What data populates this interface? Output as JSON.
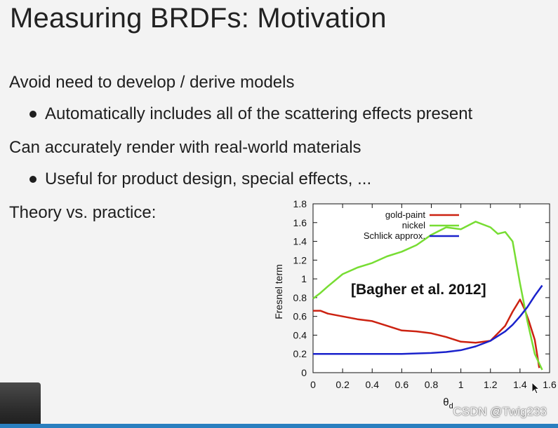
{
  "slide": {
    "title": "Measuring BRDFs: Motivation",
    "lines": [
      "Avoid need to develop / derive models",
      "Automatically includes all of the scattering effects present",
      "Can accurately render with real-world materials",
      "Useful for product design, special effects, ...",
      "Theory vs. practice:"
    ]
  },
  "watermark": "CSDN @Twig233",
  "colors": {
    "gold_paint": "#cc2211",
    "nickel": "#77dd33",
    "schlick": "#1a22cc"
  },
  "chart_data": {
    "type": "line",
    "xlabel": "θd",
    "ylabel": "Fresnel term",
    "xlim": [
      0,
      1.6
    ],
    "ylim": [
      0,
      1.8
    ],
    "xticks": [
      "0",
      "0.2",
      "0.4",
      "0.6",
      "0.8",
      "1",
      "1.2",
      "1.4",
      "1.6"
    ],
    "yticks": [
      "0",
      "0.2",
      "0.4",
      "0.6",
      "0.8",
      "1",
      "1.2",
      "1.4",
      "1.6",
      "1.8"
    ],
    "legend_position": "top-right",
    "annotation": "[Bagher et al. 2012]",
    "series": [
      {
        "name": "gold-paint",
        "color": "#cc2211",
        "x": [
          0,
          0.05,
          0.1,
          0.2,
          0.3,
          0.4,
          0.5,
          0.6,
          0.7,
          0.8,
          0.9,
          1.0,
          1.1,
          1.2,
          1.3,
          1.35,
          1.4,
          1.43,
          1.46,
          1.5,
          1.53
        ],
        "y": [
          0.66,
          0.66,
          0.63,
          0.6,
          0.57,
          0.55,
          0.5,
          0.45,
          0.44,
          0.42,
          0.38,
          0.33,
          0.32,
          0.34,
          0.5,
          0.65,
          0.78,
          0.68,
          0.55,
          0.35,
          0.05
        ]
      },
      {
        "name": "nickel",
        "color": "#77dd33",
        "x": [
          0,
          0.05,
          0.1,
          0.2,
          0.3,
          0.4,
          0.5,
          0.6,
          0.7,
          0.8,
          0.9,
          1.0,
          1.1,
          1.2,
          1.25,
          1.3,
          1.35,
          1.4,
          1.45,
          1.5,
          1.55
        ],
        "y": [
          0.79,
          0.85,
          0.92,
          1.05,
          1.12,
          1.17,
          1.24,
          1.29,
          1.36,
          1.47,
          1.55,
          1.53,
          1.61,
          1.55,
          1.48,
          1.5,
          1.4,
          0.95,
          0.55,
          0.2,
          0.03
        ]
      },
      {
        "name": "Schlick approx.",
        "color": "#1a22cc",
        "x": [
          0,
          0.2,
          0.4,
          0.6,
          0.8,
          0.9,
          1.0,
          1.1,
          1.2,
          1.3,
          1.35,
          1.4,
          1.45,
          1.5,
          1.55
        ],
        "y": [
          0.2,
          0.2,
          0.2,
          0.2,
          0.21,
          0.22,
          0.24,
          0.28,
          0.34,
          0.44,
          0.51,
          0.6,
          0.7,
          0.82,
          0.93
        ]
      }
    ]
  }
}
